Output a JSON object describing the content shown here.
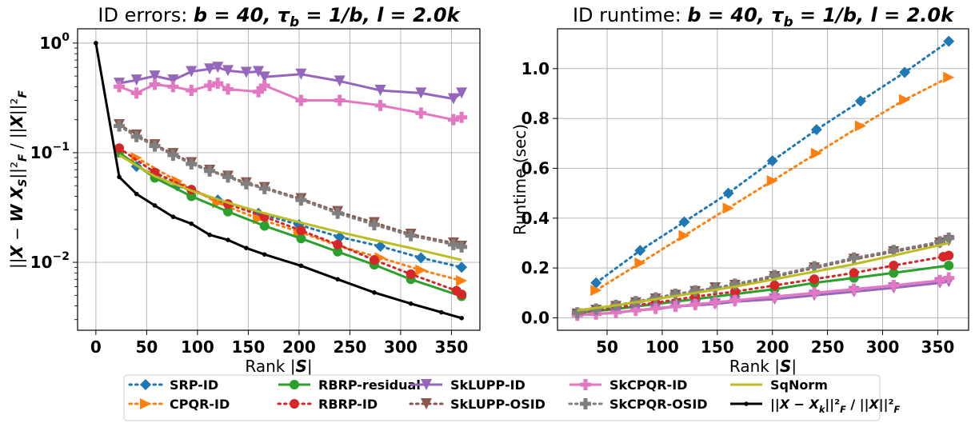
{
  "chart_data": [
    {
      "type": "line",
      "title": "ID errors: b = 40, τ_b = 1/b, l = 2.0k",
      "xlabel": "Rank |S|",
      "ylabel": "||X − W X_S||²_F / ||X||²_F",
      "yscale": "log",
      "xlim": [
        -18,
        378
      ],
      "ylim": [
        0.0024,
        1.35
      ],
      "xticks": [
        0,
        50,
        100,
        150,
        200,
        250,
        300,
        350
      ],
      "xtick_labels": [
        "0",
        "50",
        "100",
        "150",
        "200",
        "250",
        "300",
        "350"
      ],
      "yticks": [
        1,
        0.1,
        0.01
      ],
      "ytick_labels": [
        "10^0",
        "10^-1",
        "10^-2"
      ],
      "grid": true,
      "series": [
        {
          "name": "SRP-ID",
          "color": "#1f77b4",
          "style": "dotted",
          "marker": "diamond",
          "x": [
            40,
            80,
            120,
            160,
            200,
            240,
            280,
            320,
            360
          ],
          "y": [
            0.075,
            0.05,
            0.037,
            0.028,
            0.022,
            0.017,
            0.014,
            0.011,
            0.009
          ]
        },
        {
          "name": "CPQR-ID",
          "color": "#ff7f0e",
          "style": "dotted",
          "marker": "triangle-right",
          "x": [
            40,
            80,
            120,
            160,
            200,
            240,
            280,
            320,
            360
          ],
          "y": [
            0.09,
            0.055,
            0.035,
            0.025,
            0.019,
            0.014,
            0.011,
            0.0085,
            0.0068
          ]
        },
        {
          "name": "RBRP-residual",
          "color": "#2ca02c",
          "style": "solid",
          "marker": "circle",
          "x": [
            23,
            58,
            94,
            130,
            166,
            202,
            238,
            274,
            310,
            360
          ],
          "y": [
            0.1,
            0.059,
            0.04,
            0.029,
            0.0215,
            0.0165,
            0.0125,
            0.0095,
            0.007,
            0.0049
          ]
        },
        {
          "name": "RBRP-ID",
          "color": "#d62728",
          "style": "dotted",
          "marker": "circle",
          "x": [
            23,
            58,
            94,
            130,
            166,
            202,
            238,
            274,
            310,
            355,
            360
          ],
          "y": [
            0.11,
            0.066,
            0.046,
            0.034,
            0.026,
            0.0195,
            0.0145,
            0.0105,
            0.0078,
            0.0055,
            0.0051
          ]
        },
        {
          "name": "SkLUPP-ID",
          "color": "#9467bd",
          "style": "solid",
          "marker": "triangle-down",
          "x": [
            23,
            40,
            58,
            76,
            94,
            112,
            120,
            130,
            148,
            160,
            166,
            202,
            240,
            280,
            320,
            352,
            360
          ],
          "y": [
            0.43,
            0.46,
            0.5,
            0.46,
            0.55,
            0.58,
            0.6,
            0.56,
            0.54,
            0.55,
            0.49,
            0.52,
            0.45,
            0.37,
            0.35,
            0.31,
            0.35
          ]
        },
        {
          "name": "SkLUPP-OSID",
          "color": "#8c564b",
          "style": "dotted",
          "marker": "triangle-down",
          "x": [
            23,
            40,
            58,
            76,
            94,
            112,
            130,
            148,
            166,
            202,
            238,
            274,
            310,
            352,
            360
          ],
          "y": [
            0.18,
            0.145,
            0.118,
            0.098,
            0.081,
            0.069,
            0.061,
            0.053,
            0.048,
            0.038,
            0.029,
            0.023,
            0.018,
            0.015,
            0.014
          ]
        },
        {
          "name": "SkCPQR-ID",
          "color": "#e377c2",
          "style": "solid",
          "marker": "plus",
          "x": [
            23,
            40,
            58,
            76,
            94,
            112,
            120,
            130,
            160,
            166,
            202,
            240,
            280,
            320,
            352,
            360
          ],
          "y": [
            0.4,
            0.35,
            0.42,
            0.4,
            0.37,
            0.41,
            0.43,
            0.38,
            0.36,
            0.41,
            0.3,
            0.3,
            0.27,
            0.23,
            0.2,
            0.21
          ]
        },
        {
          "name": "SkCPQR-OSID",
          "color": "#7f7f7f",
          "style": "dotted",
          "marker": "plus",
          "x": [
            23,
            40,
            58,
            76,
            94,
            112,
            130,
            148,
            166,
            202,
            238,
            274,
            310,
            352,
            360
          ],
          "y": [
            0.175,
            0.14,
            0.115,
            0.095,
            0.079,
            0.068,
            0.06,
            0.052,
            0.047,
            0.037,
            0.028,
            0.022,
            0.0175,
            0.0145,
            0.0138
          ]
        },
        {
          "name": "SqNorm",
          "color": "#bcbd22",
          "style": "solid",
          "marker": "none",
          "x": [
            23,
            58,
            94,
            130,
            166,
            202,
            238,
            274,
            310,
            360
          ],
          "y": [
            0.095,
            0.061,
            0.045,
            0.035,
            0.028,
            0.023,
            0.019,
            0.016,
            0.0135,
            0.0105
          ]
        },
        {
          "name": "||X − X_k||²_F / ||X||²_F",
          "color": "#000000",
          "style": "solid",
          "marker": "point",
          "x": [
            0,
            23,
            40,
            58,
            76,
            94,
            112,
            130,
            148,
            166,
            202,
            238,
            274,
            310,
            340,
            360
          ],
          "y": [
            1.0,
            0.06,
            0.042,
            0.033,
            0.026,
            0.0225,
            0.0178,
            0.016,
            0.0135,
            0.0118,
            0.0093,
            0.007,
            0.0053,
            0.0042,
            0.0035,
            0.0031
          ]
        }
      ]
    },
    {
      "type": "line",
      "title": "ID runtime: b = 40, τ_b = 1/b, l = 2.0k",
      "xlabel": "Rank |S|",
      "ylabel": "Runtime (sec)",
      "xlim": [
        5,
        378
      ],
      "ylim": [
        -0.05,
        1.16
      ],
      "xticks": [
        50,
        100,
        150,
        200,
        250,
        300,
        350
      ],
      "xtick_labels": [
        "50",
        "100",
        "150",
        "200",
        "250",
        "300",
        "350"
      ],
      "yticks": [
        0.0,
        0.2,
        0.4,
        0.6,
        0.8,
        1.0
      ],
      "ytick_labels": [
        "0.0",
        "0.2",
        "0.4",
        "0.6",
        "0.8",
        "1.0"
      ],
      "grid": true,
      "series": [
        {
          "name": "SRP-ID",
          "color": "#1f77b4",
          "style": "dotted",
          "marker": "diamond",
          "x": [
            40,
            80,
            120,
            160,
            200,
            240,
            280,
            320,
            360
          ],
          "y": [
            0.14,
            0.27,
            0.385,
            0.5,
            0.63,
            0.755,
            0.87,
            0.985,
            1.11
          ]
        },
        {
          "name": "CPQR-ID",
          "color": "#ff7f0e",
          "style": "dotted",
          "marker": "triangle-right",
          "x": [
            40,
            80,
            120,
            160,
            200,
            240,
            280,
            320,
            360
          ],
          "y": [
            0.11,
            0.22,
            0.33,
            0.44,
            0.55,
            0.66,
            0.77,
            0.875,
            0.965
          ]
        },
        {
          "name": "RBRP-residual",
          "color": "#2ca02c",
          "style": "solid",
          "marker": "circle",
          "x": [
            23,
            58,
            94,
            130,
            166,
            202,
            238,
            274,
            310,
            360
          ],
          "y": [
            0.02,
            0.035,
            0.055,
            0.075,
            0.095,
            0.115,
            0.14,
            0.16,
            0.18,
            0.21
          ]
        },
        {
          "name": "RBRP-ID",
          "color": "#d62728",
          "style": "dotted",
          "marker": "circle",
          "x": [
            23,
            58,
            94,
            130,
            166,
            202,
            238,
            274,
            310,
            355,
            360
          ],
          "y": [
            0.02,
            0.04,
            0.06,
            0.085,
            0.105,
            0.13,
            0.155,
            0.18,
            0.21,
            0.245,
            0.25
          ]
        },
        {
          "name": "SkLUPP-ID",
          "color": "#9467bd",
          "style": "solid",
          "marker": "triangle-down",
          "x": [
            23,
            40,
            58,
            76,
            94,
            112,
            130,
            148,
            166,
            202,
            238,
            274,
            310,
            352,
            360
          ],
          "y": [
            0.01,
            0.015,
            0.02,
            0.03,
            0.035,
            0.045,
            0.05,
            0.055,
            0.065,
            0.075,
            0.09,
            0.105,
            0.12,
            0.14,
            0.145
          ]
        },
        {
          "name": "SkLUPP-OSID",
          "color": "#8c564b",
          "style": "dotted",
          "marker": "triangle-down",
          "x": [
            23,
            40,
            58,
            76,
            94,
            112,
            130,
            148,
            166,
            202,
            238,
            274,
            310,
            352,
            360
          ],
          "y": [
            0.015,
            0.03,
            0.045,
            0.06,
            0.075,
            0.09,
            0.105,
            0.12,
            0.13,
            0.165,
            0.2,
            0.235,
            0.265,
            0.3,
            0.31
          ]
        },
        {
          "name": "SkCPQR-ID",
          "color": "#e377c2",
          "style": "solid",
          "marker": "plus",
          "x": [
            23,
            40,
            58,
            76,
            94,
            112,
            130,
            148,
            166,
            202,
            238,
            274,
            310,
            352,
            360
          ],
          "y": [
            0.01,
            0.015,
            0.022,
            0.03,
            0.038,
            0.046,
            0.054,
            0.062,
            0.07,
            0.085,
            0.1,
            0.115,
            0.13,
            0.15,
            0.16
          ]
        },
        {
          "name": "SkCPQR-OSID",
          "color": "#7f7f7f",
          "style": "dotted",
          "marker": "plus",
          "x": [
            23,
            40,
            58,
            76,
            94,
            112,
            130,
            148,
            166,
            202,
            238,
            274,
            310,
            352,
            360
          ],
          "y": [
            0.02,
            0.035,
            0.05,
            0.065,
            0.08,
            0.095,
            0.108,
            0.12,
            0.135,
            0.17,
            0.205,
            0.24,
            0.27,
            0.305,
            0.32
          ]
        },
        {
          "name": "SqNorm",
          "color": "#bcbd22",
          "style": "solid",
          "marker": "none",
          "x": [
            23,
            58,
            94,
            130,
            166,
            202,
            238,
            274,
            310,
            360
          ],
          "y": [
            0.03,
            0.05,
            0.075,
            0.1,
            0.125,
            0.155,
            0.185,
            0.215,
            0.25,
            0.3
          ]
        }
      ]
    }
  ],
  "legend": {
    "position": "bottom-center",
    "entries": [
      {
        "label": "SRP-ID",
        "color": "#1f77b4",
        "style": "dotted",
        "marker": "diamond"
      },
      {
        "label": "CPQR-ID",
        "color": "#ff7f0e",
        "style": "dotted",
        "marker": "triangle-right"
      },
      {
        "label": "RBRP-residual",
        "color": "#2ca02c",
        "style": "solid",
        "marker": "circle"
      },
      {
        "label": "RBRP-ID",
        "color": "#d62728",
        "style": "dotted",
        "marker": "circle"
      },
      {
        "label": "SkLUPP-ID",
        "color": "#9467bd",
        "style": "solid",
        "marker": "triangle-down"
      },
      {
        "label": "SkLUPP-OSID",
        "color": "#8c564b",
        "style": "dotted",
        "marker": "triangle-down"
      },
      {
        "label": "SkCPQR-ID",
        "color": "#e377c2",
        "style": "solid",
        "marker": "plus"
      },
      {
        "label": "SkCPQR-OSID",
        "color": "#7f7f7f",
        "style": "dotted",
        "marker": "plus"
      },
      {
        "label": "SqNorm",
        "color": "#bcbd22",
        "style": "solid",
        "marker": "none"
      },
      {
        "label": "||X − X_k||²_F / ||X||²_F",
        "color": "#000000",
        "style": "solid",
        "marker": "point"
      }
    ]
  }
}
